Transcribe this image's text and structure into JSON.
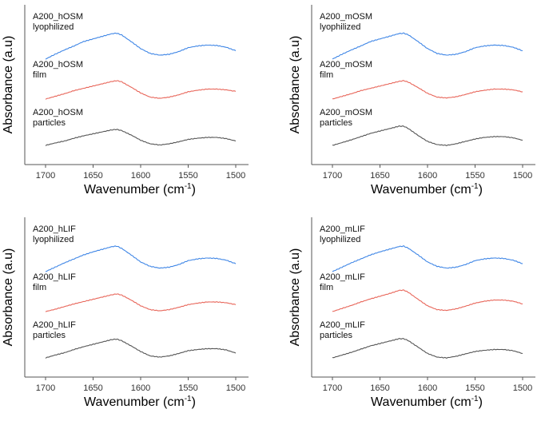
{
  "chart_data": [
    {
      "type": "line",
      "id": "hOSM",
      "xlabel": "Wavenumber (cm",
      "xlabel_sup": "-1",
      "xlabel_end": ")",
      "ylabel": "Absorbance (a.u)",
      "xlim": [
        1700,
        1500
      ],
      "xticks": [
        1700,
        1650,
        1600,
        1550,
        1500
      ],
      "yticks_visible": false,
      "series": [
        {
          "name": "A200_hOSM lyophilized",
          "line1": "A200_hOSM",
          "line2": "lyophilized",
          "color": "#3f86e6",
          "x": [
            1700,
            1690,
            1680,
            1670,
            1660,
            1650,
            1640,
            1630,
            1625,
            1620,
            1610,
            1600,
            1590,
            1580,
            1570,
            1560,
            1550,
            1540,
            1530,
            1520,
            1510,
            1500
          ],
          "y": [
            0.0,
            0.11,
            0.21,
            0.3,
            0.4,
            0.46,
            0.52,
            0.58,
            0.59,
            0.55,
            0.4,
            0.24,
            0.13,
            0.09,
            0.11,
            0.17,
            0.26,
            0.3,
            0.32,
            0.31,
            0.27,
            0.19
          ]
        },
        {
          "name": "A200_hOSM film",
          "line1": "A200_hOSM",
          "line2": "film",
          "color": "#e8665a",
          "x": [
            1700,
            1690,
            1680,
            1670,
            1660,
            1650,
            1640,
            1630,
            1625,
            1620,
            1610,
            1600,
            1590,
            1580,
            1570,
            1560,
            1550,
            1540,
            1530,
            1520,
            1510,
            1500
          ],
          "y": [
            0.0,
            0.07,
            0.14,
            0.22,
            0.28,
            0.34,
            0.4,
            0.46,
            0.48,
            0.45,
            0.31,
            0.16,
            0.05,
            0.02,
            0.05,
            0.11,
            0.19,
            0.23,
            0.26,
            0.26,
            0.24,
            0.2
          ]
        },
        {
          "name": "A200_hOSM particles",
          "line1": "A200_hOSM",
          "line2": "particles",
          "color": "#555555",
          "x": [
            1700,
            1690,
            1680,
            1670,
            1660,
            1650,
            1640,
            1630,
            1625,
            1620,
            1610,
            1600,
            1590,
            1580,
            1570,
            1560,
            1550,
            1540,
            1530,
            1520,
            1510,
            1500
          ],
          "y": [
            0.0,
            0.06,
            0.11,
            0.18,
            0.24,
            0.29,
            0.34,
            0.39,
            0.4,
            0.37,
            0.26,
            0.13,
            0.04,
            0.01,
            0.04,
            0.09,
            0.15,
            0.18,
            0.2,
            0.2,
            0.17,
            0.11
          ]
        }
      ]
    },
    {
      "type": "line",
      "id": "mOSM",
      "xlabel": "Wavenumber (cm",
      "xlabel_sup": "-1",
      "xlabel_end": ")",
      "ylabel": "Absorbance (a.u)",
      "xlim": [
        1700,
        1500
      ],
      "xticks": [
        1700,
        1650,
        1600,
        1550,
        1500
      ],
      "yticks_visible": false,
      "series": [
        {
          "name": "A200_mOSM lyophilized",
          "line1": "A200_mOSM",
          "line2": "lyophilized",
          "color": "#3f86e6",
          "x": [
            1700,
            1690,
            1680,
            1670,
            1660,
            1650,
            1640,
            1630,
            1625,
            1620,
            1610,
            1600,
            1590,
            1580,
            1570,
            1560,
            1550,
            1540,
            1530,
            1520,
            1510,
            1500
          ],
          "y": [
            0.0,
            0.11,
            0.21,
            0.3,
            0.4,
            0.46,
            0.52,
            0.58,
            0.59,
            0.55,
            0.4,
            0.24,
            0.13,
            0.09,
            0.11,
            0.17,
            0.26,
            0.3,
            0.32,
            0.31,
            0.27,
            0.19
          ]
        },
        {
          "name": "A200_mOSM film",
          "line1": "A200_mOSM",
          "line2": "film",
          "color": "#e8665a",
          "x": [
            1700,
            1690,
            1680,
            1670,
            1660,
            1650,
            1640,
            1630,
            1625,
            1620,
            1610,
            1600,
            1590,
            1580,
            1570,
            1560,
            1550,
            1540,
            1530,
            1520,
            1510,
            1500
          ],
          "y": [
            0.0,
            0.07,
            0.14,
            0.22,
            0.28,
            0.34,
            0.4,
            0.46,
            0.48,
            0.44,
            0.3,
            0.15,
            0.05,
            0.03,
            0.06,
            0.12,
            0.19,
            0.23,
            0.26,
            0.26,
            0.24,
            0.19
          ]
        },
        {
          "name": "A200_mOSM particles",
          "line1": "A200_mOSM",
          "line2": "particles",
          "color": "#555555",
          "x": [
            1700,
            1690,
            1680,
            1670,
            1660,
            1650,
            1640,
            1630,
            1625,
            1620,
            1610,
            1600,
            1590,
            1580,
            1570,
            1560,
            1550,
            1540,
            1530,
            1520,
            1510,
            1500
          ],
          "y": [
            0.0,
            0.07,
            0.14,
            0.22,
            0.3,
            0.36,
            0.42,
            0.48,
            0.48,
            0.42,
            0.25,
            0.1,
            0.02,
            0.0,
            0.04,
            0.1,
            0.16,
            0.2,
            0.22,
            0.22,
            0.19,
            0.13
          ]
        }
      ]
    },
    {
      "type": "line",
      "id": "hLIF",
      "xlabel": "Wavenumber (cm",
      "xlabel_sup": "-1",
      "xlabel_end": ")",
      "ylabel": "Absorbance (a.u)",
      "xlim": [
        1700,
        1500
      ],
      "xticks": [
        1700,
        1650,
        1600,
        1550,
        1500
      ],
      "yticks_visible": false,
      "series": [
        {
          "name": "A200_hLIF lyophilized",
          "line1": "A200_hLIF",
          "line2": "lyophilized",
          "color": "#3f86e6",
          "x": [
            1700,
            1690,
            1680,
            1670,
            1660,
            1650,
            1640,
            1630,
            1625,
            1620,
            1610,
            1600,
            1590,
            1580,
            1570,
            1560,
            1550,
            1540,
            1530,
            1520,
            1510,
            1500
          ],
          "y": [
            0.0,
            0.1,
            0.2,
            0.29,
            0.38,
            0.45,
            0.51,
            0.57,
            0.58,
            0.53,
            0.38,
            0.22,
            0.12,
            0.08,
            0.1,
            0.16,
            0.25,
            0.29,
            0.31,
            0.3,
            0.26,
            0.18
          ]
        },
        {
          "name": "A200_hLIF film",
          "line1": "A200_hLIF",
          "line2": "film",
          "color": "#e8665a",
          "x": [
            1700,
            1690,
            1680,
            1670,
            1660,
            1650,
            1640,
            1630,
            1625,
            1620,
            1610,
            1600,
            1590,
            1580,
            1570,
            1560,
            1550,
            1540,
            1530,
            1520,
            1510,
            1500
          ],
          "y": [
            0.0,
            0.06,
            0.13,
            0.2,
            0.26,
            0.32,
            0.38,
            0.44,
            0.46,
            0.43,
            0.3,
            0.15,
            0.05,
            0.02,
            0.05,
            0.11,
            0.18,
            0.22,
            0.25,
            0.25,
            0.23,
            0.18
          ]
        },
        {
          "name": "A200_hLIF particles",
          "line1": "A200_hLIF",
          "line2": "particles",
          "color": "#555555",
          "x": [
            1700,
            1690,
            1680,
            1670,
            1660,
            1650,
            1640,
            1630,
            1625,
            1620,
            1610,
            1600,
            1590,
            1580,
            1570,
            1560,
            1550,
            1540,
            1530,
            1520,
            1510,
            1500
          ],
          "y": [
            0.0,
            0.07,
            0.13,
            0.21,
            0.28,
            0.34,
            0.4,
            0.46,
            0.47,
            0.43,
            0.3,
            0.16,
            0.05,
            0.02,
            0.05,
            0.11,
            0.18,
            0.21,
            0.23,
            0.23,
            0.2,
            0.12
          ]
        }
      ]
    },
    {
      "type": "line",
      "id": "mLIF",
      "xlabel": "Wavenumber (cm",
      "xlabel_sup": "-1",
      "xlabel_end": ")",
      "ylabel": "Absorbance (a.u)",
      "xlim": [
        1700,
        1500
      ],
      "xticks": [
        1700,
        1650,
        1600,
        1550,
        1500
      ],
      "yticks_visible": false,
      "series": [
        {
          "name": "A200_mLIF lyophilized",
          "line1": "A200_mLIF",
          "line2": "lyophilized",
          "color": "#3f86e6",
          "x": [
            1700,
            1690,
            1680,
            1670,
            1660,
            1650,
            1640,
            1630,
            1625,
            1620,
            1610,
            1600,
            1590,
            1580,
            1570,
            1560,
            1550,
            1540,
            1530,
            1520,
            1510,
            1500
          ],
          "y": [
            0.0,
            0.1,
            0.2,
            0.29,
            0.38,
            0.45,
            0.51,
            0.57,
            0.58,
            0.53,
            0.38,
            0.22,
            0.12,
            0.08,
            0.1,
            0.16,
            0.25,
            0.29,
            0.31,
            0.3,
            0.26,
            0.18
          ]
        },
        {
          "name": "A200_mLIF film",
          "line1": "A200_mLIF",
          "line2": "film",
          "color": "#e8665a",
          "x": [
            1700,
            1690,
            1680,
            1670,
            1660,
            1650,
            1640,
            1630,
            1625,
            1620,
            1610,
            1600,
            1590,
            1580,
            1570,
            1560,
            1550,
            1540,
            1530,
            1520,
            1510,
            1500
          ],
          "y": [
            0.0,
            0.08,
            0.16,
            0.25,
            0.33,
            0.4,
            0.47,
            0.55,
            0.56,
            0.5,
            0.32,
            0.15,
            0.05,
            0.03,
            0.07,
            0.14,
            0.22,
            0.27,
            0.3,
            0.3,
            0.27,
            0.2
          ]
        },
        {
          "name": "A200_mLIF particles",
          "line1": "A200_mLIF",
          "line2": "particles",
          "color": "#555555",
          "x": [
            1700,
            1690,
            1680,
            1670,
            1660,
            1650,
            1640,
            1630,
            1625,
            1620,
            1610,
            1600,
            1590,
            1580,
            1570,
            1560,
            1550,
            1540,
            1530,
            1520,
            1510,
            1500
          ],
          "y": [
            0.0,
            0.07,
            0.14,
            0.22,
            0.3,
            0.36,
            0.42,
            0.48,
            0.48,
            0.43,
            0.27,
            0.11,
            0.02,
            0.0,
            0.04,
            0.1,
            0.16,
            0.19,
            0.21,
            0.21,
            0.18,
            0.11
          ]
        }
      ]
    }
  ]
}
